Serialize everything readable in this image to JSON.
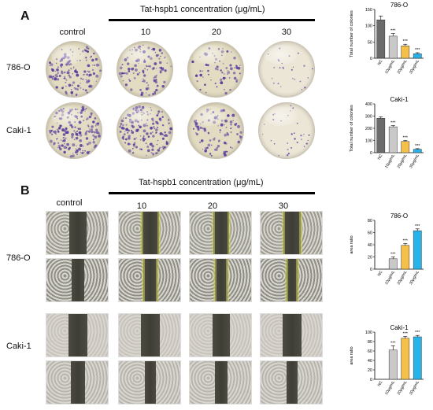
{
  "panelA": {
    "letter": "A",
    "header": "Tat-hspb1 concentration (μg/mL)",
    "columns": [
      "control",
      "10",
      "20",
      "30"
    ],
    "rows": [
      "786-O",
      "Caki-1"
    ]
  },
  "panelB": {
    "letter": "B",
    "header": "Tat-hspb1 concentration (μg/mL)",
    "columns": [
      "control",
      "10",
      "20",
      "30"
    ],
    "rows": [
      "786-O",
      "Caki-1"
    ]
  },
  "colors": {
    "NC": "#6b6b6b",
    "10ug": "#c9c9c9",
    "20ug": "#f5c04a",
    "30ug": "#26b3ea",
    "colony_stain": "#5a3f9e",
    "dish_bg": "#e8e2cc"
  },
  "chart_data": [
    {
      "type": "bar",
      "title": "786-O",
      "ylabel": "Total number of colonies",
      "categories": [
        "NC",
        "10μg/mL",
        "20μg/mL",
        "30μg/mL"
      ],
      "values": [
        118,
        68,
        38,
        14
      ],
      "errors": [
        12,
        8,
        5,
        3
      ],
      "significance": [
        "",
        "***",
        "***",
        "***"
      ],
      "ylim": [
        0,
        150
      ],
      "yticks": [
        0,
        50,
        100,
        150
      ]
    },
    {
      "type": "bar",
      "title": "Caki-1",
      "ylabel": "Total number of colonies",
      "categories": [
        "NC",
        "10μg/mL",
        "20μg/mL",
        "30μg/mL"
      ],
      "values": [
        282,
        212,
        92,
        28
      ],
      "errors": [
        12,
        10,
        8,
        5
      ],
      "significance": [
        "",
        "***",
        "***",
        "***"
      ],
      "ylim": [
        0,
        400
      ],
      "yticks": [
        0,
        100,
        200,
        300,
        400
      ]
    },
    {
      "type": "bar",
      "title": "786-O",
      "ylabel": "area ratio",
      "categories": [
        "NC",
        "10μg/mL",
        "20μg/mL",
        "30μg/mL"
      ],
      "values": [
        0,
        17,
        39,
        63
      ],
      "errors": [
        0,
        3,
        3,
        3
      ],
      "significance": [
        "",
        "***",
        "***",
        "***"
      ],
      "ylim": [
        0,
        80
      ],
      "yticks": [
        0,
        20,
        40,
        60,
        80
      ]
    },
    {
      "type": "bar",
      "title": "Caki-1",
      "ylabel": "area ratio",
      "categories": [
        "NC",
        "10μg/mL",
        "20μg/mL",
        "30μg/mL"
      ],
      "values": [
        0,
        62,
        87,
        90
      ],
      "errors": [
        0,
        9,
        4,
        3
      ],
      "significance": [
        "",
        "***",
        "***",
        "***"
      ],
      "ylim": [
        0,
        100
      ],
      "yticks": [
        0,
        20,
        40,
        60,
        80,
        100
      ]
    }
  ]
}
